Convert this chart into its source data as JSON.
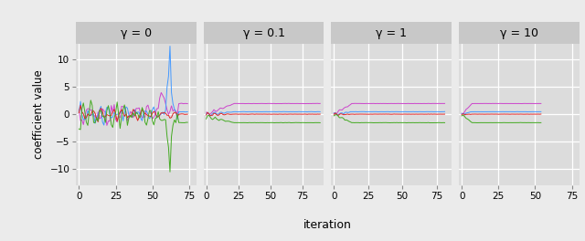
{
  "panels": [
    {
      "title": "γ = 0",
      "n_iter": 75,
      "converge_iter": 68,
      "xlim": [
        0,
        80
      ]
    },
    {
      "title": "γ = 0.1",
      "n_iter": 90,
      "converge_iter": 22,
      "xlim": [
        0,
        92
      ]
    },
    {
      "title": "γ = 1",
      "n_iter": 82,
      "converge_iter": 13,
      "xlim": [
        0,
        86
      ]
    },
    {
      "title": "γ = 10",
      "n_iter": 55,
      "converge_iter": 7,
      "xlim": [
        0,
        80
      ]
    }
  ],
  "final_values": {
    "purple": 2.0,
    "blue": 0.5,
    "red": 0.05,
    "green": -1.5
  },
  "colors": {
    "purple": "#CC44CC",
    "blue": "#4499FF",
    "red": "#DD2222",
    "green": "#44AA22"
  },
  "ylim": [
    -13,
    13
  ],
  "yticks": [
    -10,
    -5,
    0,
    5,
    10
  ],
  "xticks_all": [
    0,
    25,
    50,
    75
  ],
  "xlabel": "iteration",
  "ylabel": "coefficient value",
  "bg_color": "#EBEBEB",
  "panel_bg": "#DCDCDC",
  "grid_color": "#FFFFFF",
  "strip_bg": "#C8C8C8",
  "linewidth": 0.7,
  "figsize": [
    6.4,
    2.64
  ],
  "dpi": 100
}
